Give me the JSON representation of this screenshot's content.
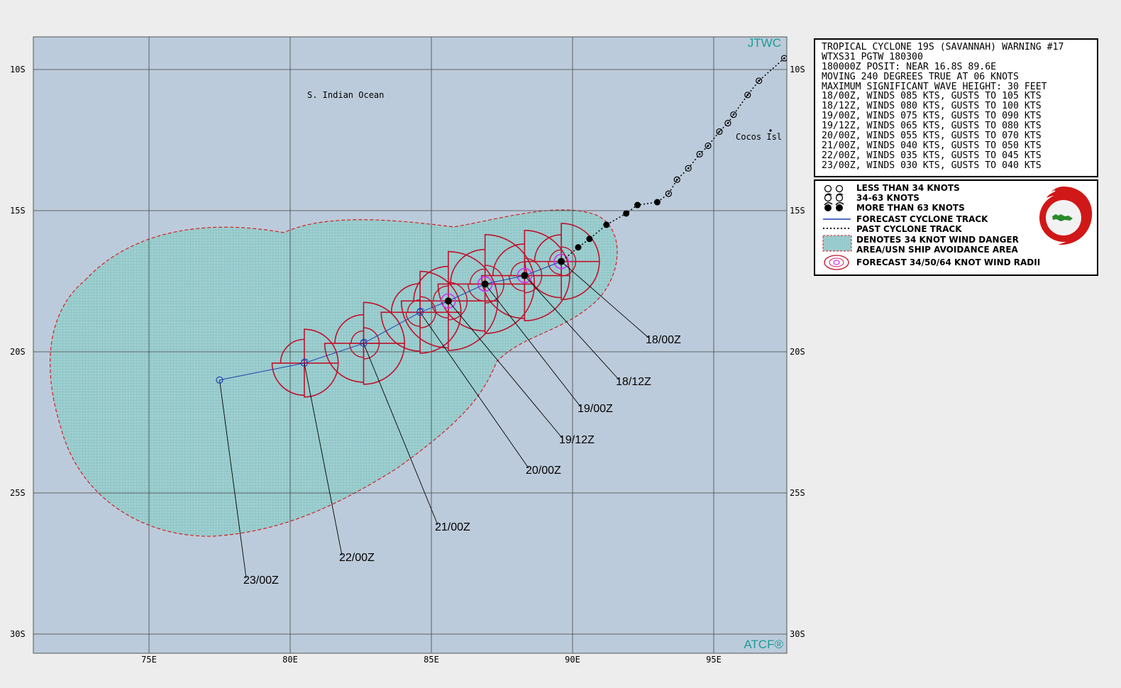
{
  "map": {
    "corner_top_right": "JTWC",
    "corner_bottom_right": "ATCF®",
    "region_label": "S. Indian Ocean",
    "place_label": "Cocos Isl",
    "lon_range": [
      71,
      97.5
    ],
    "lat_range": [
      8.8,
      30.5
    ],
    "lat_ticks": [
      {
        "lat": 10,
        "label": "10S"
      },
      {
        "lat": 15,
        "label": "15S"
      },
      {
        "lat": 20,
        "label": "20S"
      },
      {
        "lat": 25,
        "label": "25S"
      },
      {
        "lat": 30,
        "label": "30S"
      }
    ],
    "lon_ticks": [
      {
        "lon": 75,
        "label": "75E"
      },
      {
        "lon": 80,
        "label": "80E"
      },
      {
        "lon": 85,
        "label": "85E"
      },
      {
        "lon": 90,
        "label": "90E"
      },
      {
        "lon": 95,
        "label": "95E"
      }
    ],
    "colors": {
      "ocean": "#bccbdb",
      "danger_area": "#9ecfd0",
      "danger_border": "#d42020",
      "wind_radii_34": "#c0102a",
      "wind_radii_64": "#cc33ff",
      "forecast_track": "#2040b0",
      "grid": "#444444"
    },
    "forecast_points": [
      {
        "label": "18/00Z",
        "lon": 89.6,
        "lat": 16.8,
        "intensity": "more_than_63"
      },
      {
        "label": "18/12Z",
        "lon": 88.3,
        "lat": 17.3,
        "intensity": "more_than_63"
      },
      {
        "lat": 17.6,
        "lon": 86.9,
        "label": "19/00Z",
        "intensity": "more_than_63"
      },
      {
        "lat": 18.2,
        "lon": 85.6,
        "label": "19/12Z",
        "intensity": "more_than_63"
      },
      {
        "lat": 18.6,
        "lon": 84.6,
        "label": "20/00Z",
        "intensity": "34_63"
      },
      {
        "lat": 19.7,
        "lon": 82.6,
        "label": "21/00Z",
        "intensity": "34_63"
      },
      {
        "lat": 20.4,
        "lon": 80.5,
        "label": "22/00Z",
        "intensity": "34_63"
      },
      {
        "lat": 21.0,
        "lon": 77.5,
        "label": "23/00Z",
        "intensity": "less_than_34"
      }
    ],
    "past_track": [
      [
        97.5,
        9.6
      ],
      [
        96.6,
        10.4
      ],
      [
        96.2,
        10.9
      ],
      [
        95.7,
        11.6
      ],
      [
        95.5,
        11.9
      ],
      [
        95.2,
        12.2
      ],
      [
        94.8,
        12.7
      ],
      [
        94.5,
        13.0
      ],
      [
        94.1,
        13.5
      ],
      [
        93.7,
        13.9
      ],
      [
        93.4,
        14.4
      ],
      [
        93.0,
        14.7
      ],
      [
        92.3,
        14.8
      ],
      [
        91.9,
        15.1
      ],
      [
        91.2,
        15.5
      ],
      [
        90.6,
        16.0
      ],
      [
        90.2,
        16.3
      ],
      [
        89.6,
        16.8
      ]
    ]
  },
  "warning": {
    "lines": [
      "TROPICAL CYCLONE 19S (SAVANNAH) WARNING #17",
      "WTXS31 PGTW 180300",
      "180000Z POSIT: NEAR 16.8S 89.6E",
      "MOVING 240 DEGREES TRUE AT 06 KNOTS",
      "MAXIMUM SIGNIFICANT WAVE HEIGHT: 30 FEET",
      "18/00Z, WINDS 085 KTS, GUSTS TO 105 KTS",
      "18/12Z, WINDS 080 KTS, GUSTS TO 100 KTS",
      "19/00Z, WINDS 075 KTS, GUSTS TO 090 KTS",
      "19/12Z, WINDS 065 KTS, GUSTS TO 080 KTS",
      "20/00Z, WINDS 055 KTS, GUSTS TO 070 KTS",
      "21/00Z, WINDS 040 KTS, GUSTS TO 050 KTS",
      "22/00Z, WINDS 035 KTS, GUSTS TO 045 KTS",
      "23/00Z, WINDS 030 KTS, GUSTS TO 040 KTS"
    ]
  },
  "legend": {
    "items": [
      "LESS THAN 34 KNOTS",
      "34-63 KNOTS",
      "MORE THAN 63 KNOTS",
      "FORECAST CYCLONE TRACK",
      "PAST CYCLONE TRACK",
      "DENOTES 34 KNOT WIND DANGER",
      "AREA/USN SHIP AVOIDANCE AREA",
      "FORECAST 34/50/64 KNOT WIND RADII"
    ],
    "logo": "JOINT TYPHOON WARNING CENTER"
  }
}
